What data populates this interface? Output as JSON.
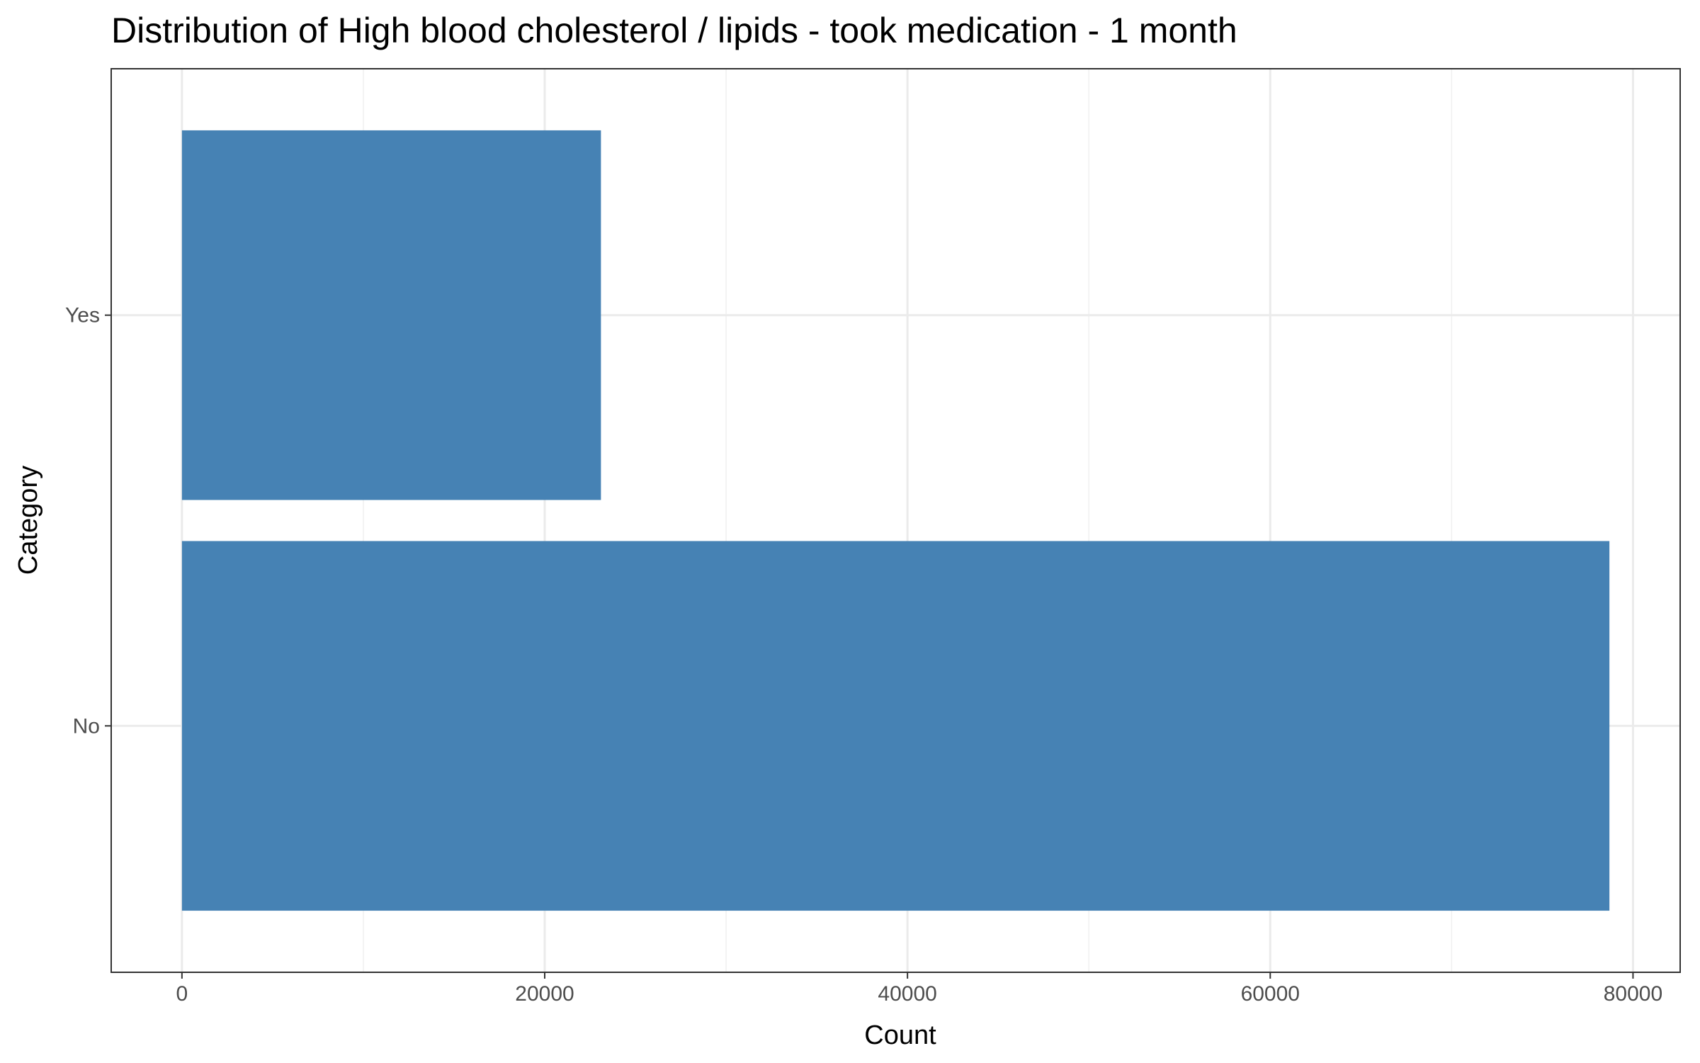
{
  "chart_data": {
    "type": "bar",
    "orientation": "horizontal",
    "title": "Distribution of High blood cholesterol / lipids - took medication - 1 month",
    "xlabel": "Count",
    "ylabel": "Category",
    "categories": [
      "No",
      "Yes"
    ],
    "values": [
      78700,
      23100
    ],
    "xlim": [
      -3900,
      82600
    ],
    "xticks": [
      0,
      20000,
      40000,
      60000,
      80000
    ],
    "xtick_labels": [
      "0",
      "20000",
      "40000",
      "60000",
      "80000"
    ],
    "grid": true,
    "legend": "none",
    "bar_color": "#4682B4"
  }
}
